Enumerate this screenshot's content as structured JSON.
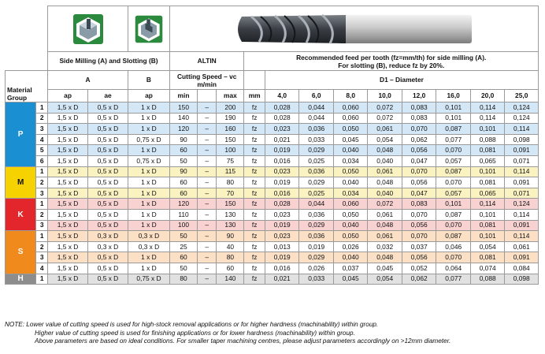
{
  "header": {
    "side_slot": "Side Milling (A) and Slotting (B)",
    "coating": "ALTIN",
    "feed_note_line1": "Recommended feed per tooth (fz=mm/th) for side milling (A).",
    "feed_note_line2": "For slotting (B), reduce fz by 20%.",
    "col_a": "A",
    "col_b": "B",
    "cutting_speed": "Cutting Speed – vc m/min",
    "diameter_title": "D1 – Diameter",
    "material_group": "Material Group",
    "sub_ap": "ap",
    "sub_ae": "ae",
    "sub_ap_b": "ap",
    "sub_min": "min",
    "sub_max": "max",
    "sub_mm": "mm",
    "diameters": [
      "4,0",
      "6,0",
      "8,0",
      "10,0",
      "12,0",
      "16,0",
      "20,0",
      "25,0"
    ]
  },
  "icons": {
    "side_milling": "side-milling-icon",
    "slotting": "slotting-icon",
    "tool": "end-mill-image"
  },
  "colors": {
    "P": "#1a8fd1",
    "M": "#f6d300",
    "K": "#e3262b",
    "S": "#f08a1d",
    "H": "#8d8d8d"
  },
  "groups": [
    {
      "label": "P",
      "rows": [
        {
          "n": "1",
          "ap": "1,5 x D",
          "ae": "0,5 x D",
          "apb": "1 x D",
          "min": "150",
          "dash": "–",
          "max": "200",
          "unit": "fz",
          "f": [
            "0,028",
            "0,044",
            "0,060",
            "0,072",
            "0,083",
            "0,101",
            "0,114",
            "0,124"
          ]
        },
        {
          "n": "2",
          "ap": "1,5 x D",
          "ae": "0,5 x D",
          "apb": "1 x D",
          "min": "140",
          "dash": "–",
          "max": "190",
          "unit": "fz",
          "f": [
            "0,028",
            "0,044",
            "0,060",
            "0,072",
            "0,083",
            "0,101",
            "0,114",
            "0,124"
          ]
        },
        {
          "n": "3",
          "ap": "1,5 x D",
          "ae": "0,5 x D",
          "apb": "1 x D",
          "min": "120",
          "dash": "–",
          "max": "160",
          "unit": "fz",
          "f": [
            "0,023",
            "0,036",
            "0,050",
            "0,061",
            "0,070",
            "0,087",
            "0,101",
            "0,114"
          ]
        },
        {
          "n": "4",
          "ap": "1,5 x D",
          "ae": "0,5 x D",
          "apb": "0,75 x D",
          "min": "90",
          "dash": "–",
          "max": "150",
          "unit": "fz",
          "f": [
            "0,021",
            "0,033",
            "0,045",
            "0,054",
            "0,062",
            "0,077",
            "0,088",
            "0,098"
          ]
        },
        {
          "n": "5",
          "ap": "1,5 x D",
          "ae": "0,5 x D",
          "apb": "1 x D",
          "min": "60",
          "dash": "–",
          "max": "100",
          "unit": "fz",
          "f": [
            "0,019",
            "0,029",
            "0,040",
            "0,048",
            "0,056",
            "0,070",
            "0,081",
            "0,091"
          ]
        },
        {
          "n": "6",
          "ap": "1,5 x D",
          "ae": "0,5 x D",
          "apb": "0,75 x D",
          "min": "50",
          "dash": "–",
          "max": "75",
          "unit": "fz",
          "f": [
            "0,016",
            "0,025",
            "0,034",
            "0,040",
            "0,047",
            "0,057",
            "0,065",
            "0,071"
          ]
        }
      ]
    },
    {
      "label": "M",
      "rows": [
        {
          "n": "1",
          "ap": "1,5 x D",
          "ae": "0,5 x D",
          "apb": "1 x D",
          "min": "90",
          "dash": "–",
          "max": "115",
          "unit": "fz",
          "f": [
            "0,023",
            "0,036",
            "0,050",
            "0,061",
            "0,070",
            "0,087",
            "0,101",
            "0,114"
          ]
        },
        {
          "n": "2",
          "ap": "1,5 x D",
          "ae": "0,5 x D",
          "apb": "1 x D",
          "min": "60",
          "dash": "–",
          "max": "80",
          "unit": "fz",
          "f": [
            "0,019",
            "0,029",
            "0,040",
            "0,048",
            "0,056",
            "0,070",
            "0,081",
            "0,091"
          ]
        },
        {
          "n": "3",
          "ap": "1,5 x D",
          "ae": "0,5 x D",
          "apb": "1 x D",
          "min": "60",
          "dash": "–",
          "max": "70",
          "unit": "fz",
          "f": [
            "0,016",
            "0,025",
            "0,034",
            "0,040",
            "0,047",
            "0,057",
            "0,065",
            "0,071"
          ]
        }
      ]
    },
    {
      "label": "K",
      "rows": [
        {
          "n": "1",
          "ap": "1,5 x D",
          "ae": "0,5 x D",
          "apb": "1 x D",
          "min": "120",
          "dash": "–",
          "max": "150",
          "unit": "fz",
          "f": [
            "0,028",
            "0,044",
            "0,060",
            "0,072",
            "0,083",
            "0,101",
            "0,114",
            "0,124"
          ]
        },
        {
          "n": "2",
          "ap": "1,5 x D",
          "ae": "0,5 x D",
          "apb": "1 x D",
          "min": "110",
          "dash": "–",
          "max": "130",
          "unit": "fz",
          "f": [
            "0,023",
            "0,036",
            "0,050",
            "0,061",
            "0,070",
            "0,087",
            "0,101",
            "0,114"
          ]
        },
        {
          "n": "3",
          "ap": "1,5 x D",
          "ae": "0,5 x D",
          "apb": "1 x D",
          "min": "100",
          "dash": "–",
          "max": "130",
          "unit": "fz",
          "f": [
            "0,019",
            "0,029",
            "0,040",
            "0,048",
            "0,056",
            "0,070",
            "0,081",
            "0,091"
          ]
        }
      ]
    },
    {
      "label": "S",
      "rows": [
        {
          "n": "1",
          "ap": "1,5 x D",
          "ae": "0,3 x D",
          "apb": "0,3 x D",
          "min": "50",
          "dash": "–",
          "max": "90",
          "unit": "fz",
          "f": [
            "0,023",
            "0,036",
            "0,050",
            "0,061",
            "0,070",
            "0,087",
            "0,101",
            "0,114"
          ]
        },
        {
          "n": "2",
          "ap": "1,5 x D",
          "ae": "0,3 x D",
          "apb": "0,3 x D",
          "min": "25",
          "dash": "–",
          "max": "40",
          "unit": "fz",
          "f": [
            "0,013",
            "0,019",
            "0,026",
            "0,032",
            "0,037",
            "0,046",
            "0,054",
            "0,061"
          ]
        },
        {
          "n": "3",
          "ap": "1,5 x D",
          "ae": "0,5 x D",
          "apb": "1 x D",
          "min": "60",
          "dash": "–",
          "max": "80",
          "unit": "fz",
          "f": [
            "0,019",
            "0,029",
            "0,040",
            "0,048",
            "0,056",
            "0,070",
            "0,081",
            "0,091"
          ]
        },
        {
          "n": "4",
          "ap": "1,5 x D",
          "ae": "0,5 x D",
          "apb": "1 x D",
          "min": "50",
          "dash": "–",
          "max": "60",
          "unit": "fz",
          "f": [
            "0,016",
            "0,026",
            "0,037",
            "0,045",
            "0,052",
            "0,064",
            "0,074",
            "0,084"
          ]
        }
      ]
    },
    {
      "label": "H",
      "rows": [
        {
          "n": "1",
          "ap": "1,5 x D",
          "ae": "0,5 x D",
          "apb": "0,75 x D",
          "min": "80",
          "dash": "–",
          "max": "140",
          "unit": "fz",
          "f": [
            "0,021",
            "0,033",
            "0,045",
            "0,054",
            "0,062",
            "0,077",
            "0,088",
            "0,098"
          ]
        }
      ]
    }
  ],
  "notes": [
    "NOTE: Lower value of cutting speed is used for high-stock removal applications or for higher hardness (machinability) within group.",
    "Higher value of cutting speed is used for finishing applications or for lower hardness (machinability) within group.",
    "Above parameters are based on ideal conditions.  For smaller taper machining centres, please adjust parameters accordingly on >12mm diameter."
  ]
}
